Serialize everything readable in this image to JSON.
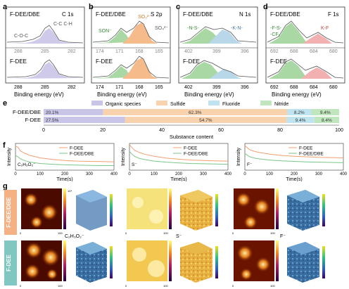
{
  "xps": [
    {
      "letter": "a",
      "sample_top": "F-DEE/DBE",
      "element": "C 1s",
      "sample_bottom": "F-DEE",
      "ticks": [
        "288",
        "285",
        "282"
      ],
      "annots": [
        "C-O-C",
        "C-C C-H"
      ],
      "fills_top": [
        "#bdb6de"
      ],
      "fills_bottom": [
        "#bdb6de"
      ],
      "xlabel": "Binding energy (eV)"
    },
    {
      "letter": "b",
      "sample_top": "F-DEE/DBE",
      "element": "S 2p",
      "sample_bottom": "F-DEE",
      "ticks": [
        "174",
        "171",
        "168",
        "165"
      ],
      "annots": [
        "SON⁻",
        "SO₃²⁻",
        "SO₄²⁻",
        "S⁻"
      ],
      "fills_top": [
        "#9ed39a",
        "#f3b27e"
      ],
      "fills_bottom": [
        "#9ed39a",
        "#f3b27e"
      ],
      "xlabel": "Binding energy (eV)"
    },
    {
      "letter": "c",
      "sample_top": "F-DEE/DBE",
      "element": "N 1s",
      "sample_bottom": "F-DEE",
      "ticks": [
        "402",
        "399",
        "396"
      ],
      "annots": [
        "-N-S-",
        "-K-N-"
      ],
      "fills_top": [
        "#9ed39a",
        "#a9cfe6"
      ],
      "fills_bottom": [
        "#9ed39a",
        "#a9cfe6"
      ],
      "xlabel": "Binding energy (eV)"
    },
    {
      "letter": "d",
      "sample_top": "F-DEE/DBE",
      "element": "F 1s",
      "sample_bottom": "F-DEE",
      "ticks": [
        "692",
        "688",
        "684",
        "680"
      ],
      "annots": [
        "-F-S-",
        "-CFₓ",
        "K-F"
      ],
      "fills_top": [
        "#9ed39a",
        "#f0a0a0"
      ],
      "fills_bottom": [
        "#9ed39a",
        "#f0a0a0"
      ],
      "xlabel": "Binding energy (eV)"
    }
  ],
  "panel_e": {
    "letter": "e",
    "legend": [
      {
        "label": "Organic species",
        "color": "#c8c5e8"
      },
      {
        "label": "Sulfide",
        "color": "#f8d2ad"
      },
      {
        "label": "Fluoride",
        "color": "#bfe3ef"
      },
      {
        "label": "Nitride",
        "color": "#bfe6bd"
      }
    ],
    "rows": [
      {
        "name": "F-DEE/DBE",
        "values": [
          20.1,
          62.3,
          8.2,
          9.4
        ],
        "labels": [
          "20.1%",
          "62.3%",
          "8.2%",
          "9.4%"
        ]
      },
      {
        "name": "F-DEE",
        "values": [
          27.5,
          54.7,
          9.4,
          8.4
        ],
        "labels": [
          "27.5%",
          "54.7%",
          "9.4%",
          "8.4%"
        ]
      }
    ],
    "ticks": [
      "0",
      "20",
      "40",
      "60",
      "80",
      "100"
    ],
    "xlabel": "Substance content"
  },
  "chart_data": [
    {
      "type": "line",
      "panel": "f-1",
      "ion": "C₂H₃O₂⁻",
      "ylabel": "Intensity",
      "xlabel": "Time(s)",
      "xlim": [
        0,
        400
      ],
      "x_ticks": [
        "0",
        "100",
        "200",
        "300",
        "400"
      ],
      "series": [
        {
          "name": "F-DEE",
          "color": "#f0a070",
          "x": [
            0,
            10,
            20,
            40,
            60,
            100,
            150,
            200,
            250,
            300,
            350,
            400
          ],
          "y": [
            0.9,
            0.86,
            0.72,
            0.62,
            0.55,
            0.46,
            0.4,
            0.36,
            0.34,
            0.33,
            0.32,
            0.31
          ]
        },
        {
          "name": "F-DEE/DBE",
          "color": "#7cc68a",
          "x": [
            0,
            10,
            20,
            40,
            60,
            100,
            150,
            200,
            250,
            300,
            350,
            400
          ],
          "y": [
            0.55,
            0.5,
            0.42,
            0.35,
            0.3,
            0.25,
            0.22,
            0.2,
            0.19,
            0.18,
            0.17,
            0.17
          ]
        }
      ]
    },
    {
      "type": "line",
      "panel": "f-2",
      "ion": "S⁻",
      "ylabel": "Intensity",
      "xlabel": "Time(s)",
      "xlim": [
        0,
        400
      ],
      "x_ticks": [
        "0",
        "100",
        "200",
        "300",
        "400"
      ],
      "series": [
        {
          "name": "F-DEE",
          "color": "#f0a070",
          "x": [
            0,
            10,
            20,
            40,
            60,
            100,
            150,
            200,
            250,
            300,
            350,
            400
          ],
          "y": [
            0.95,
            0.85,
            0.75,
            0.66,
            0.6,
            0.52,
            0.45,
            0.41,
            0.38,
            0.36,
            0.35,
            0.34
          ]
        },
        {
          "name": "F-DEE/DBE",
          "color": "#7cc68a",
          "x": [
            0,
            10,
            20,
            40,
            60,
            100,
            150,
            200,
            250,
            300,
            350,
            400
          ],
          "y": [
            0.7,
            0.6,
            0.52,
            0.44,
            0.4,
            0.34,
            0.3,
            0.27,
            0.25,
            0.24,
            0.23,
            0.22
          ]
        }
      ]
    },
    {
      "type": "line",
      "panel": "f-3",
      "ion": "F⁻",
      "ylabel": "Intensity",
      "xlabel": "Time(s)",
      "xlim": [
        0,
        400
      ],
      "x_ticks": [
        "0",
        "100",
        "200",
        "300",
        "400"
      ],
      "series": [
        {
          "name": "F-DEE",
          "color": "#f0a070",
          "x": [
            0,
            10,
            20,
            40,
            60,
            100,
            150,
            200,
            250,
            300,
            350,
            400
          ],
          "y": [
            0.92,
            0.84,
            0.76,
            0.7,
            0.66,
            0.6,
            0.55,
            0.52,
            0.5,
            0.48,
            0.47,
            0.46
          ]
        },
        {
          "name": "F-DEE/DBE",
          "color": "#7cc68a",
          "x": [
            0,
            10,
            20,
            40,
            60,
            100,
            150,
            200,
            250,
            300,
            350,
            400
          ],
          "y": [
            0.62,
            0.56,
            0.5,
            0.45,
            0.42,
            0.38,
            0.35,
            0.33,
            0.31,
            0.3,
            0.29,
            0.28
          ]
        }
      ]
    }
  ],
  "panel_g": {
    "letter": "g",
    "row_labels": [
      "F-DEE/DBE",
      "F-DEE"
    ],
    "row_colors": [
      "#f4b183",
      "#7fc7c0"
    ],
    "ions": [
      "C₂H₃O₂⁻",
      "S⁻",
      "F⁻"
    ],
    "axis_ticks": [
      "0",
      "100"
    ],
    "colorbar_ticks": [
      "10⁴",
      "10²"
    ]
  }
}
